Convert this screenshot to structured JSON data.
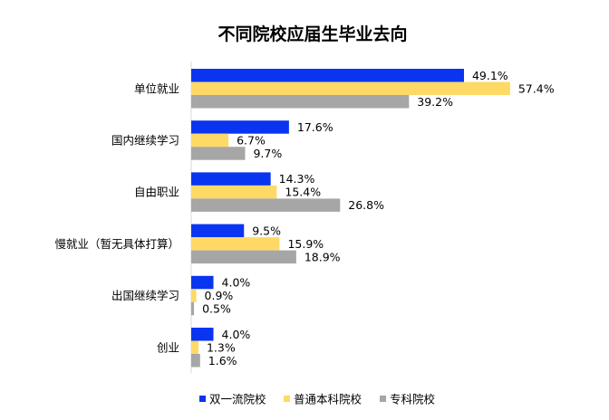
{
  "chart_data": {
    "type": "bar",
    "orientation": "horizontal",
    "title": "不同院校应届生毕业去向",
    "categories": [
      "单位就业",
      "国内继续学习",
      "自由职业",
      "慢就业（暂无具体打算）",
      "出国继续学习",
      "创业"
    ],
    "series": [
      {
        "name": "双一流院校",
        "color": "#0a35f0",
        "values": [
          49.1,
          17.6,
          14.3,
          9.5,
          4.0,
          4.0
        ]
      },
      {
        "name": "普通本科院校",
        "color": "#ffd966",
        "values": [
          57.4,
          6.7,
          15.4,
          15.9,
          0.9,
          1.3
        ]
      },
      {
        "name": "专科院校",
        "color": "#a6a6a6",
        "values": [
          39.2,
          9.7,
          26.8,
          18.9,
          0.5,
          1.6
        ]
      }
    ],
    "value_suffix": "%",
    "legend_position": "bottom",
    "grid": false
  }
}
